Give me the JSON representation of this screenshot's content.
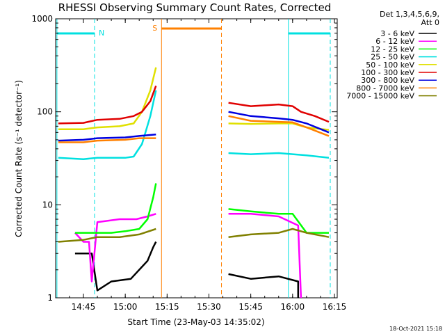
{
  "chart_data": {
    "type": "line",
    "title": "RHESSI Observing Summary Count Rates, Corrected",
    "xlabel": "Start Time (23-May-03 14:35:02)",
    "ylabel": "Corrected Count Rate (s⁻¹ detector⁻¹)",
    "yscale": "log",
    "ylim": [
      1,
      1000
    ],
    "xlim": [
      "14:35:02",
      "16:16:00"
    ],
    "x_ticks": [
      "14:45",
      "15:00",
      "15:15",
      "15:30",
      "15:45",
      "16:00",
      "16:15"
    ],
    "y_ticks": [
      "1",
      "10",
      "100",
      "1000"
    ],
    "grid": false,
    "legend_position": "top-right",
    "legend_header": [
      "Det 1,3,4,5,6,9,",
      "Att 0"
    ],
    "timestamp": "18-Oct-2021 15:18",
    "annotations": [
      {
        "text": "N",
        "color": "#00e0e0",
        "from": "14:35:30",
        "to": "14:49:00"
      },
      {
        "text": "S",
        "color": "#ff8000",
        "from": "15:13:00",
        "to": "15:34:30"
      },
      {
        "text": "",
        "color": "#00e0e0",
        "from": "15:58:30",
        "to": "16:13:30"
      }
    ],
    "vlines": [
      {
        "time": "14:35:30",
        "color": "#00e0e0",
        "style": "solid"
      },
      {
        "time": "14:49:00",
        "color": "#00e0e0",
        "style": "dashed"
      },
      {
        "time": "15:13:00",
        "color": "#ff8000",
        "style": "solid"
      },
      {
        "time": "15:34:30",
        "color": "#ff8000",
        "style": "dashed"
      },
      {
        "time": "15:58:30",
        "color": "#00e0e0",
        "style": "solid"
      },
      {
        "time": "16:13:30",
        "color": "#00e0e0",
        "style": "dashed"
      }
    ],
    "series": [
      {
        "name": "3 - 6 keV",
        "color": "#000000",
        "points": [
          [
            "14:42",
            3
          ],
          [
            "14:48",
            3
          ],
          [
            "14:50",
            1.2
          ],
          [
            "14:55",
            1.5
          ],
          [
            "15:02",
            1.6
          ],
          [
            "15:08",
            2.5
          ],
          [
            "15:10",
            3.5
          ],
          [
            "15:11",
            4
          ],
          "gap",
          [
            "15:37",
            1.8
          ],
          [
            "15:45",
            1.6
          ],
          [
            "15:55",
            1.7
          ],
          [
            "16:02",
            1.5
          ],
          [
            "16:02",
            1
          ]
        ]
      },
      {
        "name": "6 - 12 keV",
        "color": "#ff00ff",
        "points": [
          [
            "14:42",
            5
          ],
          [
            "14:45",
            4
          ],
          [
            "14:47",
            4
          ],
          [
            "14:48",
            1.5
          ],
          [
            "14:50",
            6.5
          ],
          [
            "14:58",
            7
          ],
          [
            "15:04",
            7
          ],
          [
            "15:08",
            7.5
          ],
          [
            "15:11",
            8
          ],
          "gap",
          [
            "15:37",
            8
          ],
          [
            "15:45",
            8
          ],
          [
            "15:55",
            7.5
          ],
          [
            "16:02",
            6
          ],
          [
            "16:03",
            1
          ]
        ]
      },
      {
        "name": "12 - 25 keV",
        "color": "#00ff00",
        "points": [
          [
            "14:42",
            5
          ],
          [
            "14:50",
            5
          ],
          [
            "14:55",
            5
          ],
          [
            "15:00",
            5.2
          ],
          [
            "15:05",
            5.5
          ],
          [
            "15:08",
            7
          ],
          [
            "15:10",
            12
          ],
          [
            "15:11",
            17
          ],
          "gap",
          [
            "15:37",
            9
          ],
          [
            "15:45",
            8.5
          ],
          [
            "15:55",
            8
          ],
          [
            "16:00",
            8
          ],
          [
            "16:05",
            5
          ],
          [
            "16:10",
            5
          ],
          [
            "16:13",
            5
          ]
        ]
      },
      {
        "name": "25 - 50 keV",
        "color": "#00e0e0",
        "points": [
          [
            "14:36",
            32
          ],
          [
            "14:45",
            31
          ],
          [
            "14:50",
            32
          ],
          [
            "15:00",
            32
          ],
          [
            "15:03",
            33
          ],
          [
            "15:06",
            45
          ],
          [
            "15:09",
            90
          ],
          [
            "15:11",
            170
          ],
          "gap",
          [
            "15:37",
            36
          ],
          [
            "15:45",
            35
          ],
          [
            "15:55",
            36
          ],
          [
            "16:00",
            35
          ],
          [
            "16:05",
            34
          ],
          [
            "16:13",
            32
          ]
        ]
      },
      {
        "name": "50 - 100 keV",
        "color": "#e0e000",
        "points": [
          [
            "14:36",
            65
          ],
          [
            "14:45",
            65
          ],
          [
            "14:50",
            68
          ],
          [
            "14:58",
            70
          ],
          [
            "15:03",
            75
          ],
          [
            "15:06",
            100
          ],
          [
            "15:09",
            170
          ],
          [
            "15:11",
            300
          ],
          "gap",
          [
            "15:37",
            75
          ],
          [
            "15:45",
            74
          ],
          [
            "15:55",
            75
          ],
          [
            "16:00",
            75
          ],
          [
            "16:05",
            68
          ],
          [
            "16:13",
            64
          ]
        ]
      },
      {
        "name": "100 - 300 keV",
        "color": "#e00000",
        "points": [
          [
            "14:36",
            75
          ],
          [
            "14:45",
            76
          ],
          [
            "14:50",
            82
          ],
          [
            "14:58",
            84
          ],
          [
            "15:03",
            90
          ],
          [
            "15:06",
            100
          ],
          [
            "15:09",
            130
          ],
          [
            "15:11",
            190
          ],
          "gap",
          [
            "15:37",
            125
          ],
          [
            "15:45",
            115
          ],
          [
            "15:55",
            120
          ],
          [
            "16:00",
            115
          ],
          [
            "16:03",
            100
          ],
          [
            "16:08",
            90
          ],
          [
            "16:13",
            78
          ]
        ]
      },
      {
        "name": "300 - 800 keV",
        "color": "#0000e0",
        "points": [
          [
            "14:36",
            49
          ],
          [
            "14:45",
            50
          ],
          [
            "14:50",
            52
          ],
          [
            "15:00",
            53
          ],
          [
            "15:05",
            55
          ],
          [
            "15:11",
            57
          ],
          "gap",
          [
            "15:37",
            100
          ],
          [
            "15:45",
            90
          ],
          [
            "15:55",
            85
          ],
          [
            "16:00",
            82
          ],
          [
            "16:05",
            75
          ],
          [
            "16:13",
            60
          ]
        ]
      },
      {
        "name": "800 - 7000 keV",
        "color": "#ff8000",
        "points": [
          [
            "14:36",
            47
          ],
          [
            "14:45",
            47
          ],
          [
            "14:50",
            49
          ],
          [
            "15:00",
            50
          ],
          [
            "15:05",
            52
          ],
          [
            "15:11",
            52
          ],
          "gap",
          [
            "15:37",
            90
          ],
          [
            "15:45",
            80
          ],
          [
            "15:55",
            78
          ],
          [
            "16:00",
            77
          ],
          [
            "16:05",
            68
          ],
          [
            "16:13",
            55
          ]
        ]
      },
      {
        "name": "7000 - 15000 keV",
        "color": "#808000",
        "points": [
          [
            "14:36",
            4
          ],
          [
            "14:45",
            4.2
          ],
          [
            "14:50",
            4.5
          ],
          [
            "14:58",
            4.5
          ],
          [
            "15:05",
            4.8
          ],
          [
            "15:11",
            5.5
          ],
          "gap",
          [
            "15:37",
            4.5
          ],
          [
            "15:45",
            4.8
          ],
          [
            "15:55",
            5
          ],
          [
            "16:00",
            5.5
          ],
          [
            "16:05",
            5
          ],
          [
            "16:13",
            4.5
          ]
        ]
      }
    ]
  }
}
